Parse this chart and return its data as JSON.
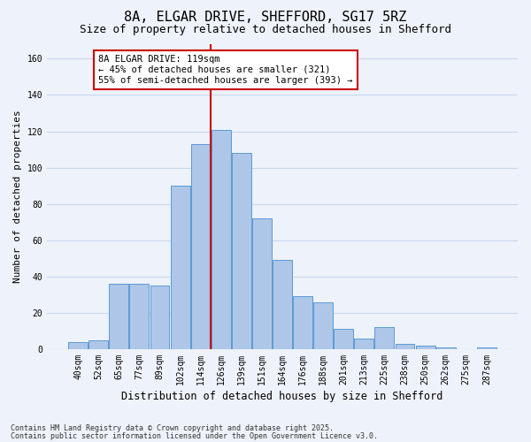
{
  "title1": "8A, ELGAR DRIVE, SHEFFORD, SG17 5RZ",
  "title2": "Size of property relative to detached houses in Shefford",
  "xlabel": "Distribution of detached houses by size in Shefford",
  "ylabel": "Number of detached properties",
  "bar_labels": [
    "40sqm",
    "52sqm",
    "65sqm",
    "77sqm",
    "89sqm",
    "102sqm",
    "114sqm",
    "126sqm",
    "139sqm",
    "151sqm",
    "164sqm",
    "176sqm",
    "188sqm",
    "201sqm",
    "213sqm",
    "225sqm",
    "238sqm",
    "250sqm",
    "262sqm",
    "275sqm",
    "287sqm"
  ],
  "bar_heights": [
    4,
    5,
    36,
    36,
    35,
    90,
    113,
    121,
    108,
    72,
    49,
    29,
    26,
    11,
    6,
    12,
    3,
    2,
    1,
    0,
    1
  ],
  "bar_color": "#aec6e8",
  "bar_edge_color": "#5b9bd5",
  "vline_index": 6.5,
  "vline_color": "#cc0000",
  "annotation_text": "8A ELGAR DRIVE: 119sqm\n← 45% of detached houses are smaller (321)\n55% of semi-detached houses are larger (393) →",
  "annotation_box_edge_color": "#cc0000",
  "background_color": "#eef2fa",
  "plot_bg_color": "#eef2fa",
  "ylim": [
    0,
    168
  ],
  "yticks": [
    0,
    20,
    40,
    60,
    80,
    100,
    120,
    140,
    160
  ],
  "footnote1": "Contains HM Land Registry data © Crown copyright and database right 2025.",
  "footnote2": "Contains public sector information licensed under the Open Government Licence v3.0.",
  "grid_color": "#c8d8ee",
  "title_fontsize": 11,
  "subtitle_fontsize": 9,
  "label_fontsize": 8,
  "tick_fontsize": 7,
  "annot_fontsize": 7.5,
  "footnote_fontsize": 6,
  "ylabel_fontsize": 8
}
